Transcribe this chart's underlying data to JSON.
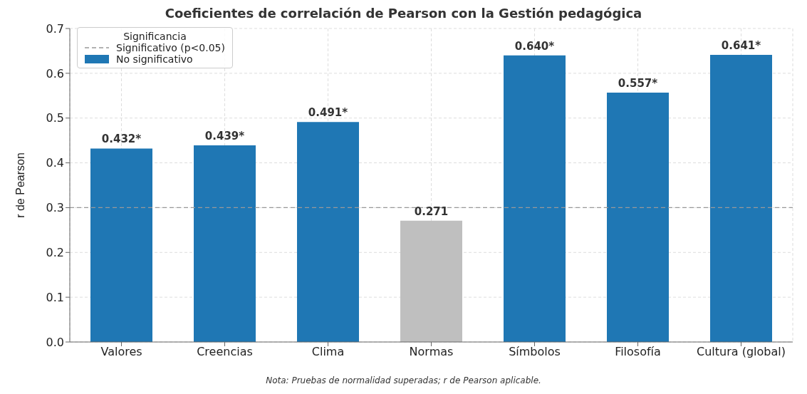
{
  "chart_data": {
    "type": "bar",
    "title": "Coeficientes de correlación de Pearson con la Gestión pedagógica",
    "ylabel": "r de Pearson",
    "categories": [
      "Valores",
      "Creencias",
      "Clima",
      "Normas",
      "Símbolos",
      "Filosofía",
      "Cultura (global)"
    ],
    "series": [
      {
        "name": "No significativo",
        "color": "#1f77b4",
        "colors": [
          "#1f77b4",
          "#1f77b4",
          "#1f77b4",
          "#bfbfbf",
          "#1f77b4",
          "#1f77b4",
          "#1f77b4"
        ],
        "values": [
          0.432,
          0.439,
          0.491,
          0.271,
          0.64,
          0.557,
          0.641
        ],
        "value_labels": [
          "0.432*",
          "0.439*",
          "0.491*",
          "0.271",
          "0.640*",
          "0.557*",
          "0.641*"
        ]
      }
    ],
    "ylim": [
      0,
      0.7
    ],
    "yticks": [
      {
        "value": 0,
        "label": "0.0"
      },
      0.1,
      0.2,
      0.3,
      0.4,
      0.5,
      0.6,
      0.7
    ],
    "ref_lines": [
      {
        "axis": "y",
        "value": 0.3,
        "label": "Significativo (p<0.05)",
        "color": "#999999",
        "line_style": "dashed"
      }
    ],
    "legend_title": "Significancia",
    "legend": "top left",
    "grid": true,
    "annotations": [
      "Nota: Pruebas de normalidad superadas; r de Pearson aplicable."
    ]
  }
}
